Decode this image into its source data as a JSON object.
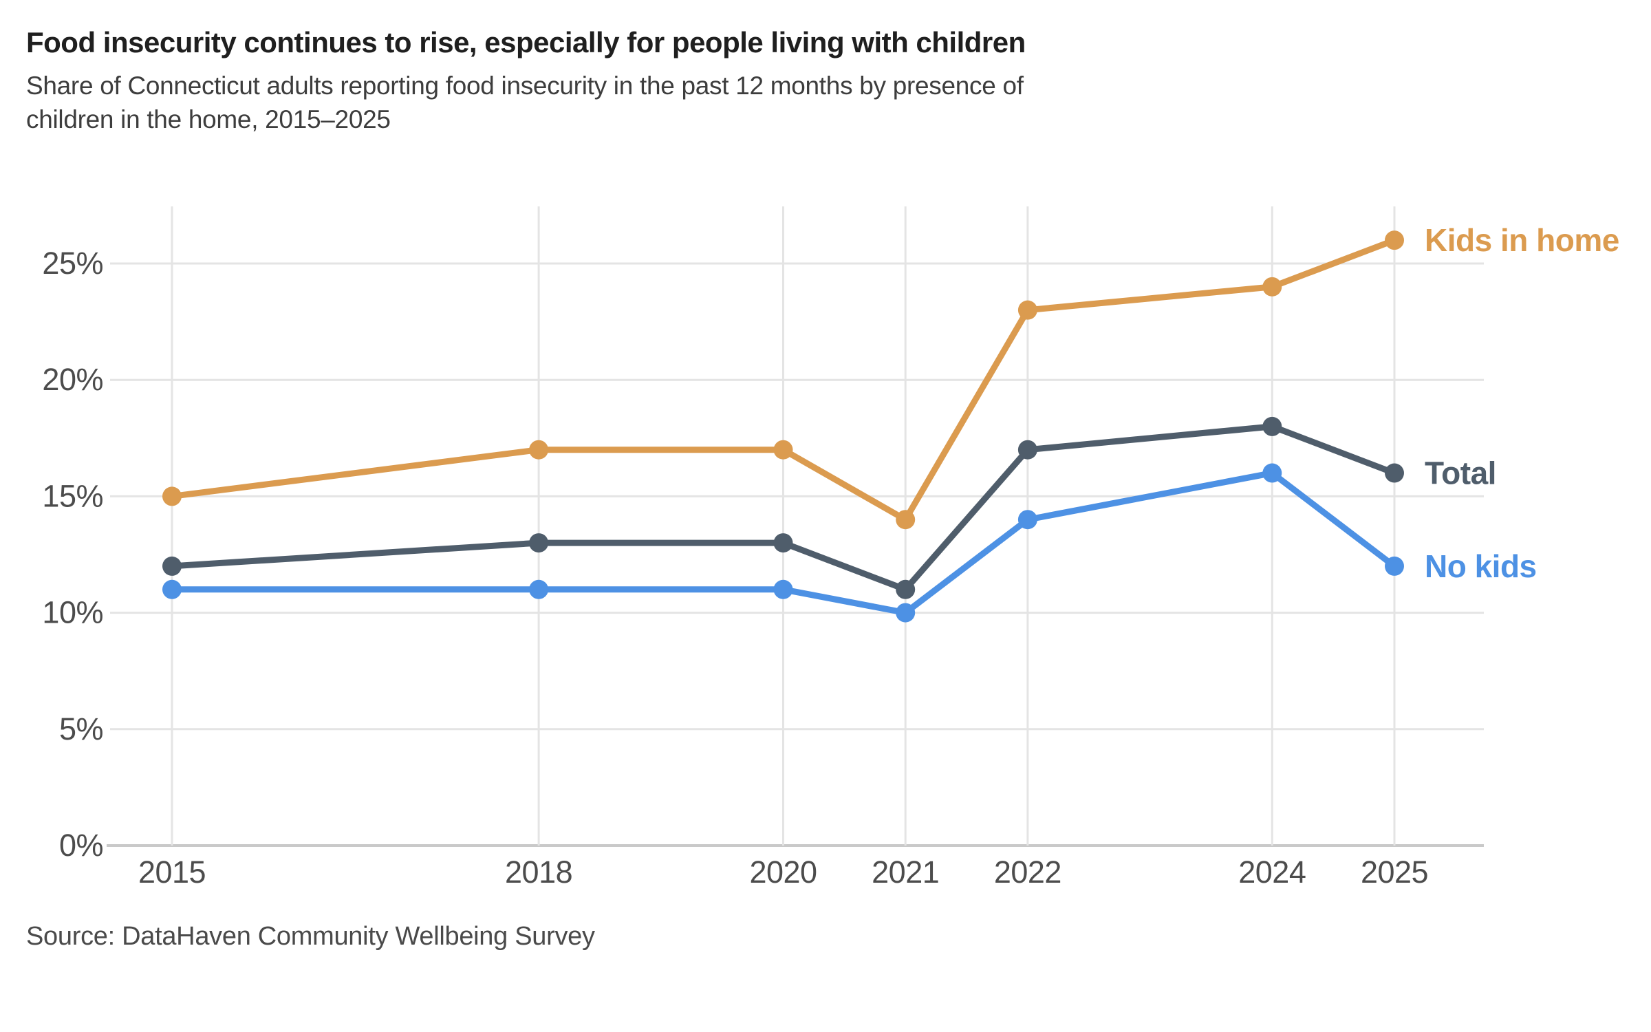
{
  "header": {
    "title": "Food insecurity continues to rise, especially for people living with children",
    "subtitle": "Share of Connecticut adults reporting food insecurity in the past 12 months by presence of\nchildren in the home, 2015–2025"
  },
  "footer": {
    "source": "Source: DataHaven Community Wellbeing Survey"
  },
  "chart_data": {
    "type": "line",
    "title": "Food insecurity continues to rise, especially for people living with children",
    "subtitle": "Share of Connecticut adults reporting food insecurity in the past 12 months by presence of children in the home, 2015–2025",
    "x": [
      2015,
      2018,
      2020,
      2021,
      2022,
      2024,
      2025
    ],
    "x_labels": [
      "2015",
      "2018",
      "2020",
      "2021",
      "2022",
      "2024",
      "2025"
    ],
    "series": [
      {
        "name": "Kids in home",
        "color": "#DB9B4F",
        "values": [
          15,
          17,
          17,
          14,
          23,
          24,
          26
        ]
      },
      {
        "name": "Total",
        "color": "#4F5D6B",
        "values": [
          12,
          13,
          13,
          11,
          17,
          18,
          16
        ]
      },
      {
        "name": "No kids",
        "color": "#4D91E4",
        "values": [
          11,
          11,
          11,
          10,
          14,
          16,
          12
        ]
      }
    ],
    "unit": "%",
    "ylim": [
      0,
      27.5
    ],
    "yticks": [
      0,
      5,
      10,
      15,
      20,
      25
    ],
    "ytick_labels": [
      "0%",
      "5%",
      "10%",
      "15%",
      "20%",
      "25%"
    ],
    "grid": true,
    "legend_position": "labels-at-line-ends",
    "colors": {
      "gridline": "#E4E4E4",
      "axis_line": "#C9C9C9",
      "tick_text": "#4C4C4C"
    }
  }
}
